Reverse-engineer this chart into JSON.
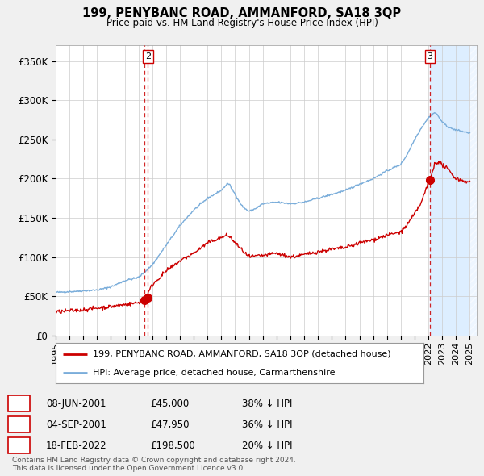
{
  "title": "199, PENYBANC ROAD, AMMANFORD, SA18 3QP",
  "subtitle": "Price paid vs. HM Land Registry's House Price Index (HPI)",
  "hpi_label": "HPI: Average price, detached house, Carmarthenshire",
  "property_label": "199, PENYBANC ROAD, AMMANFORD, SA18 3QP (detached house)",
  "ylabel_ticks": [
    "£0",
    "£50K",
    "£100K",
    "£150K",
    "£200K",
    "£250K",
    "£300K",
    "£350K"
  ],
  "ytick_values": [
    0,
    50000,
    100000,
    150000,
    200000,
    250000,
    300000,
    350000
  ],
  "ylim": [
    0,
    370000
  ],
  "xlim_start": 1995.0,
  "xlim_end": 2025.5,
  "shade_start": 2022.12,
  "transactions": [
    {
      "date": "08-JUN-2001",
      "price": 45000,
      "label": "1",
      "year": 2001.44,
      "show_label": false
    },
    {
      "date": "04-SEP-2001",
      "price": 47950,
      "label": "2",
      "year": 2001.68,
      "show_label": true
    },
    {
      "date": "18-FEB-2022",
      "price": 198500,
      "label": "3",
      "year": 2022.12,
      "show_label": true
    }
  ],
  "transaction_table": [
    {
      "num": "1",
      "date": "08-JUN-2001",
      "price": "£45,000",
      "hpi": "38% ↓ HPI"
    },
    {
      "num": "2",
      "date": "04-SEP-2001",
      "price": "£47,950",
      "hpi": "36% ↓ HPI"
    },
    {
      "num": "3",
      "date": "18-FEB-2022",
      "price": "£198,500",
      "hpi": "20% ↓ HPI"
    }
  ],
  "property_color": "#cc0000",
  "hpi_color": "#7aadda",
  "dashed_color": "#cc0000",
  "bg_color": "#f0f0f0",
  "plot_bg": "#ffffff",
  "shade_color": "#ddeeff",
  "footer": "Contains HM Land Registry data © Crown copyright and database right 2024.\nThis data is licensed under the Open Government Licence v3.0.",
  "xtick_years": [
    1995,
    1996,
    1997,
    1998,
    1999,
    2000,
    2001,
    2002,
    2003,
    2004,
    2005,
    2006,
    2007,
    2008,
    2009,
    2010,
    2011,
    2012,
    2013,
    2014,
    2015,
    2016,
    2017,
    2018,
    2019,
    2020,
    2021,
    2022,
    2023,
    2024,
    2025
  ]
}
